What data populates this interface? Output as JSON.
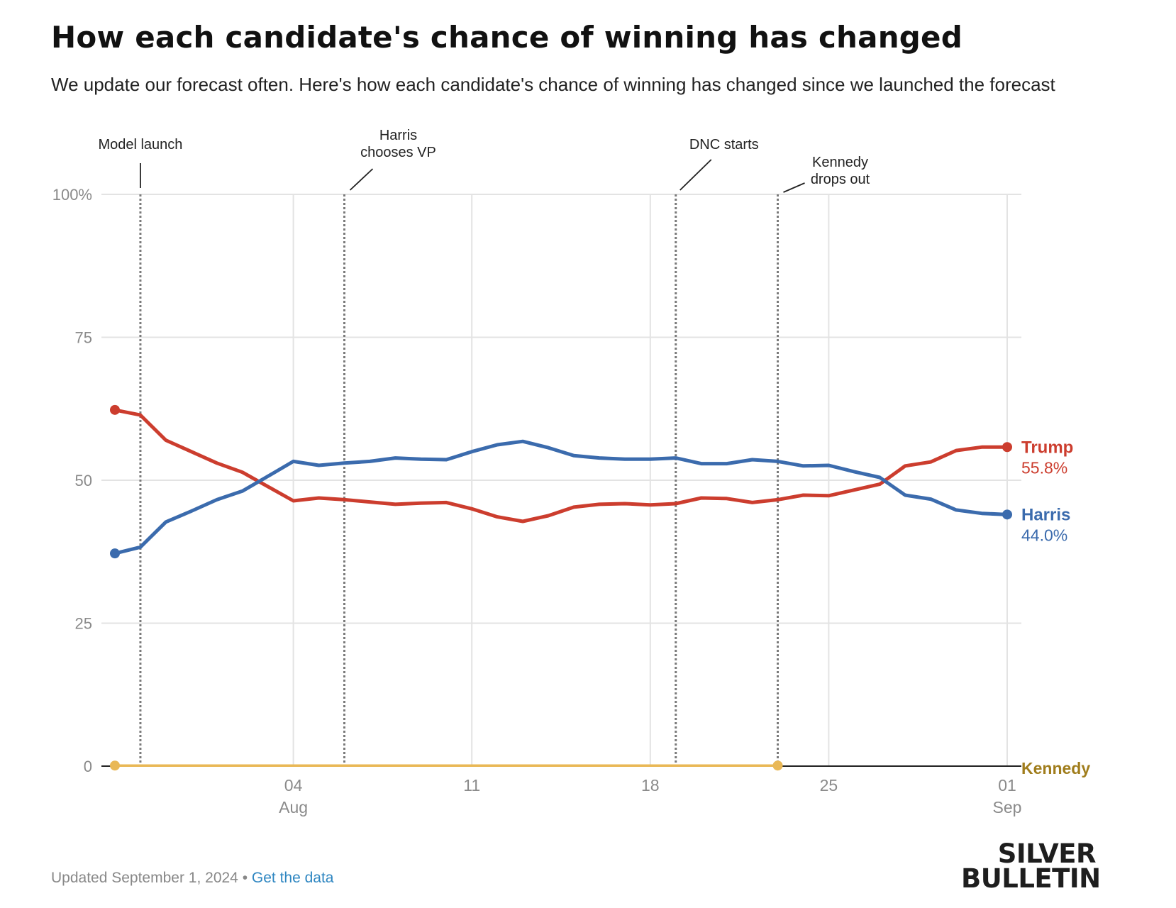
{
  "header": {
    "title": "How each candidate's chance of winning has changed",
    "subtitle": "We update our forecast often. Here's how each candidate's chance of winning has changed since we launched the forecast"
  },
  "chart_data": {
    "type": "line",
    "x_axis": {
      "range": [
        "2024-07-28",
        "2024-09-01"
      ],
      "ticks": [
        {
          "date": "2024-08-04",
          "label": "04",
          "sublabel": "Aug"
        },
        {
          "date": "2024-08-11",
          "label": "11",
          "sublabel": ""
        },
        {
          "date": "2024-08-18",
          "label": "18",
          "sublabel": ""
        },
        {
          "date": "2024-08-25",
          "label": "25",
          "sublabel": ""
        },
        {
          "date": "2024-09-01",
          "label": "01",
          "sublabel": "Sep"
        }
      ]
    },
    "y_axis": {
      "range": [
        0,
        100
      ],
      "ticks": [
        {
          "value": 0,
          "label": "0"
        },
        {
          "value": 25,
          "label": "25"
        },
        {
          "value": 50,
          "label": "50"
        },
        {
          "value": 75,
          "label": "75"
        },
        {
          "value": 100,
          "label": "100%"
        }
      ]
    },
    "grid": true,
    "events": [
      {
        "date": "2024-07-29",
        "label_lines": [
          "Model launch"
        ]
      },
      {
        "date": "2024-08-06",
        "label_lines": [
          "Harris",
          "chooses VP"
        ]
      },
      {
        "date": "2024-08-19",
        "label_lines": [
          "DNC starts"
        ]
      },
      {
        "date": "2024-08-23",
        "label_lines": [
          "Kennedy",
          "drops out"
        ]
      }
    ],
    "series": [
      {
        "name": "Trump",
        "final_label": "55.8%",
        "color": "#cc3d2e",
        "x": [
          "2024-07-28",
          "2024-07-29",
          "2024-07-30",
          "2024-07-31",
          "2024-08-01",
          "2024-08-02",
          "2024-08-03",
          "2024-08-04",
          "2024-08-05",
          "2024-08-06",
          "2024-08-07",
          "2024-08-08",
          "2024-08-09",
          "2024-08-10",
          "2024-08-11",
          "2024-08-12",
          "2024-08-13",
          "2024-08-14",
          "2024-08-15",
          "2024-08-16",
          "2024-08-17",
          "2024-08-18",
          "2024-08-19",
          "2024-08-20",
          "2024-08-21",
          "2024-08-22",
          "2024-08-23",
          "2024-08-24",
          "2024-08-25",
          "2024-08-26",
          "2024-08-27",
          "2024-08-28",
          "2024-08-29",
          "2024-08-30",
          "2024-08-31",
          "2024-09-01"
        ],
        "values": [
          62.3,
          61.4,
          57.0,
          55.0,
          53.0,
          51.4,
          48.9,
          46.4,
          46.9,
          46.6,
          46.2,
          45.8,
          46.0,
          46.1,
          45.0,
          43.6,
          42.8,
          43.8,
          45.3,
          45.8,
          45.9,
          45.7,
          45.9,
          46.9,
          46.8,
          46.1,
          46.6,
          47.4,
          47.3,
          48.3,
          49.3,
          52.5,
          53.2,
          55.2,
          55.8,
          55.8
        ],
        "show_start_point": true,
        "show_end_point": true
      },
      {
        "name": "Harris",
        "final_label": "44.0%",
        "color": "#3b6bad",
        "x": [
          "2024-07-28",
          "2024-07-29",
          "2024-07-30",
          "2024-07-31",
          "2024-08-01",
          "2024-08-02",
          "2024-08-03",
          "2024-08-04",
          "2024-08-05",
          "2024-08-06",
          "2024-08-07",
          "2024-08-08",
          "2024-08-09",
          "2024-08-10",
          "2024-08-11",
          "2024-08-12",
          "2024-08-13",
          "2024-08-14",
          "2024-08-15",
          "2024-08-16",
          "2024-08-17",
          "2024-08-18",
          "2024-08-19",
          "2024-08-20",
          "2024-08-21",
          "2024-08-22",
          "2024-08-23",
          "2024-08-24",
          "2024-08-25",
          "2024-08-26",
          "2024-08-27",
          "2024-08-28",
          "2024-08-29",
          "2024-08-30",
          "2024-08-31",
          "2024-09-01"
        ],
        "values": [
          37.2,
          38.3,
          42.7,
          44.6,
          46.6,
          48.1,
          50.7,
          53.3,
          52.6,
          53.0,
          53.3,
          53.9,
          53.7,
          53.6,
          55.0,
          56.2,
          56.8,
          55.7,
          54.3,
          53.9,
          53.7,
          53.7,
          53.9,
          52.9,
          52.9,
          53.6,
          53.3,
          52.5,
          52.6,
          51.5,
          50.5,
          47.4,
          46.7,
          44.8,
          44.2,
          44.0
        ],
        "show_start_point": true,
        "show_end_point": true
      },
      {
        "name": "Kennedy",
        "final_label": "",
        "color": "#e9b856",
        "label_color": "#a07d1c",
        "x": [
          "2024-07-28",
          "2024-08-23"
        ],
        "values": [
          0.1,
          0.1
        ],
        "show_start_point": true,
        "show_end_point": true
      }
    ]
  },
  "footer": {
    "updated": "Updated September 1, 2024",
    "separator": " • ",
    "link_label": "Get the data"
  },
  "brand": {
    "line1": "SILVER",
    "line2": "BULLETIN"
  },
  "colors": {
    "grid": "#e3e3e3",
    "axis_text": "#8a8a8a",
    "event_line": "#7a7a7a",
    "baseline": "#222222"
  }
}
